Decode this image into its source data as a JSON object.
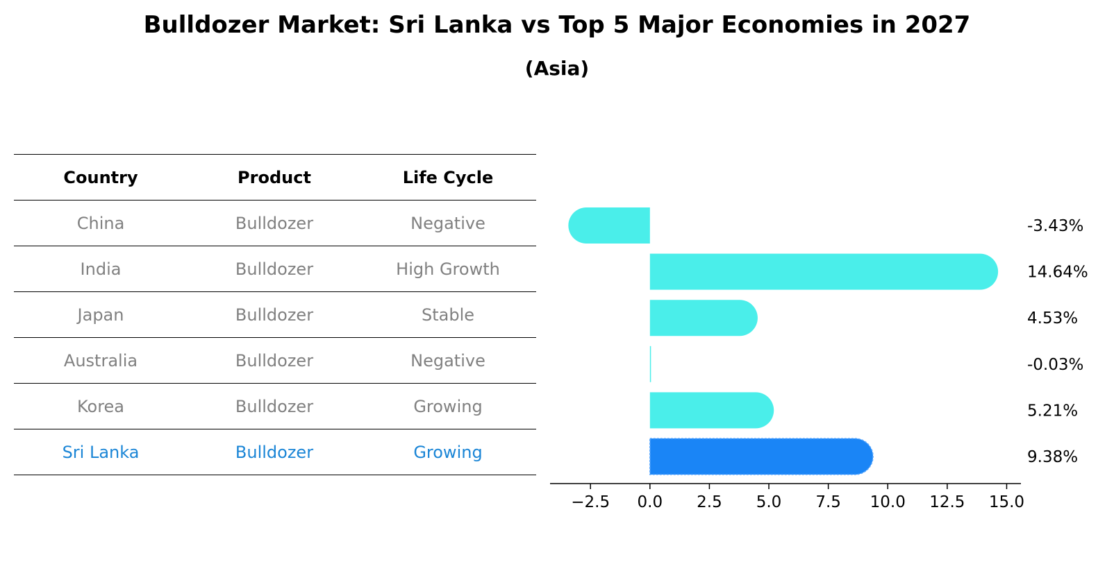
{
  "header": {
    "title": "Bulldozer Market: Sri Lanka vs Top 5 Major Economies in 2027",
    "subtitle": "(Asia)"
  },
  "table": {
    "columns": [
      "Country",
      "Product",
      "Life Cycle"
    ],
    "rows": [
      [
        "China",
        "Bulldozer",
        "Negative"
      ],
      [
        "India",
        "Bulldozer",
        "High Growth"
      ],
      [
        "Japan",
        "Bulldozer",
        "Stable"
      ],
      [
        "Australia",
        "Bulldozer",
        "Negative"
      ],
      [
        "Korea",
        "Bulldozer",
        "Growing"
      ],
      [
        "Sri Lanka",
        "Bulldozer",
        "Growing"
      ]
    ],
    "highlight_row": 5
  },
  "colors": {
    "bar": "#4aeeea",
    "highlight_bar": "#1a85f6",
    "highlight_text": "#1a85d6",
    "muted_text": "#808080"
  },
  "chart_data": {
    "type": "bar",
    "orientation": "horizontal",
    "title": "Bulldozer Market: Sri Lanka vs Top 5 Major Economies in 2027",
    "subtitle": "(Asia)",
    "categories": [
      "China",
      "India",
      "Japan",
      "Australia",
      "Korea",
      "Sri Lanka"
    ],
    "values": [
      -3.43,
      14.64,
      4.53,
      -0.03,
      5.21,
      9.38
    ],
    "value_labels": [
      "-3.43%",
      "14.64%",
      "4.53%",
      "-0.03%",
      "5.21%",
      "9.38%"
    ],
    "xlim": [
      -4.2,
      15.6
    ],
    "xticks": [
      -2.5,
      0.0,
      2.5,
      5.0,
      7.5,
      10.0,
      12.5,
      15.0
    ],
    "xtick_labels": [
      "−2.5",
      "0.0",
      "2.5",
      "5.0",
      "7.5",
      "10.0",
      "12.5",
      "15.0"
    ],
    "highlight": "Sri Lanka",
    "xlabel": "",
    "ylabel": "",
    "grid": false,
    "legend": "none"
  }
}
